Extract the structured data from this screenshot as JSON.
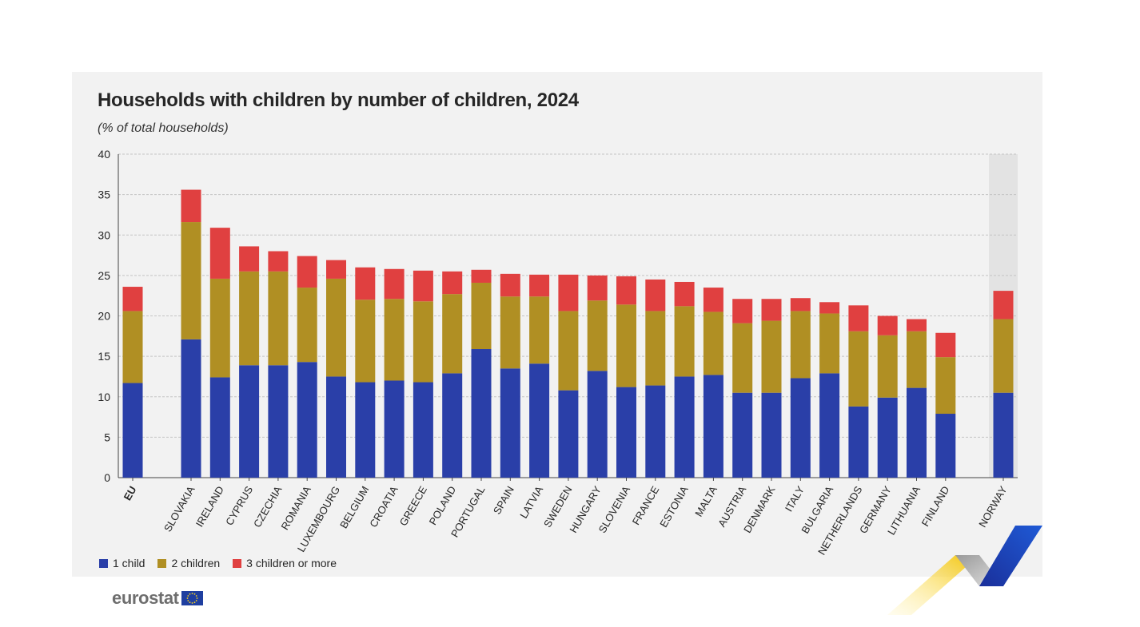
{
  "title": "Households with children by number of children, 2024",
  "subtitle": "(% of total households)",
  "logo_text": "eurostat",
  "legend": [
    {
      "label": "1 child",
      "color": "#2a3fa8"
    },
    {
      "label": "2 children",
      "color": "#b08f23"
    },
    {
      "label": "3 children or more",
      "color": "#e04040"
    }
  ],
  "chart_data": {
    "type": "bar",
    "stacked": true,
    "categories": [
      "EU",
      "SLOVAKIA",
      "IRELAND",
      "CYPRUS",
      "CZECHIA",
      "ROMANIA",
      "LUXEMBOURG",
      "BELGIUM",
      "CROATIA",
      "GREECE",
      "POLAND",
      "PORTUGAL",
      "SPAIN",
      "LATVIA",
      "SWEDEN",
      "HUNGARY",
      "SLOVENIA",
      "FRANCE",
      "ESTONIA",
      "MALTA",
      "AUSTRIA",
      "DENMARK",
      "ITALY",
      "BULGARIA",
      "NETHERLANDS",
      "GERMANY",
      "LITHUANIA",
      "FINLAND",
      "NORWAY"
    ],
    "series": [
      {
        "name": "1 child",
        "color": "#2a3fa8",
        "values": [
          11.7,
          17.1,
          12.4,
          13.9,
          13.9,
          14.3,
          12.5,
          11.8,
          12.0,
          11.8,
          12.9,
          15.9,
          13.5,
          14.1,
          10.8,
          13.2,
          11.2,
          11.4,
          12.5,
          12.7,
          10.5,
          10.5,
          12.3,
          12.9,
          8.8,
          9.9,
          11.1,
          7.9,
          10.5
        ]
      },
      {
        "name": "2 children",
        "color": "#b08f23",
        "values": [
          8.9,
          14.5,
          12.2,
          11.6,
          11.6,
          9.2,
          12.1,
          10.2,
          10.1,
          10.0,
          9.8,
          8.2,
          8.9,
          8.3,
          9.8,
          8.7,
          10.2,
          9.2,
          8.7,
          7.8,
          8.6,
          8.9,
          8.3,
          7.4,
          9.3,
          7.7,
          7.0,
          7.0,
          9.1
        ]
      },
      {
        "name": "3 children or more",
        "color": "#e04040",
        "values": [
          3.0,
          4.0,
          6.3,
          3.1,
          2.5,
          3.9,
          2.3,
          4.0,
          3.7,
          3.8,
          2.8,
          1.6,
          2.8,
          2.7,
          4.5,
          3.1,
          3.5,
          3.9,
          3.0,
          3.0,
          3.0,
          2.7,
          1.6,
          1.4,
          3.2,
          2.4,
          1.5,
          3.0,
          3.5
        ]
      }
    ],
    "ylim": [
      0,
      40
    ],
    "yticks": [
      0,
      5,
      10,
      15,
      20,
      25,
      30,
      35,
      40
    ],
    "grid": true,
    "legend_position": "bottom-left",
    "highlight_category": "NORWAY",
    "bold_category": "EU"
  }
}
